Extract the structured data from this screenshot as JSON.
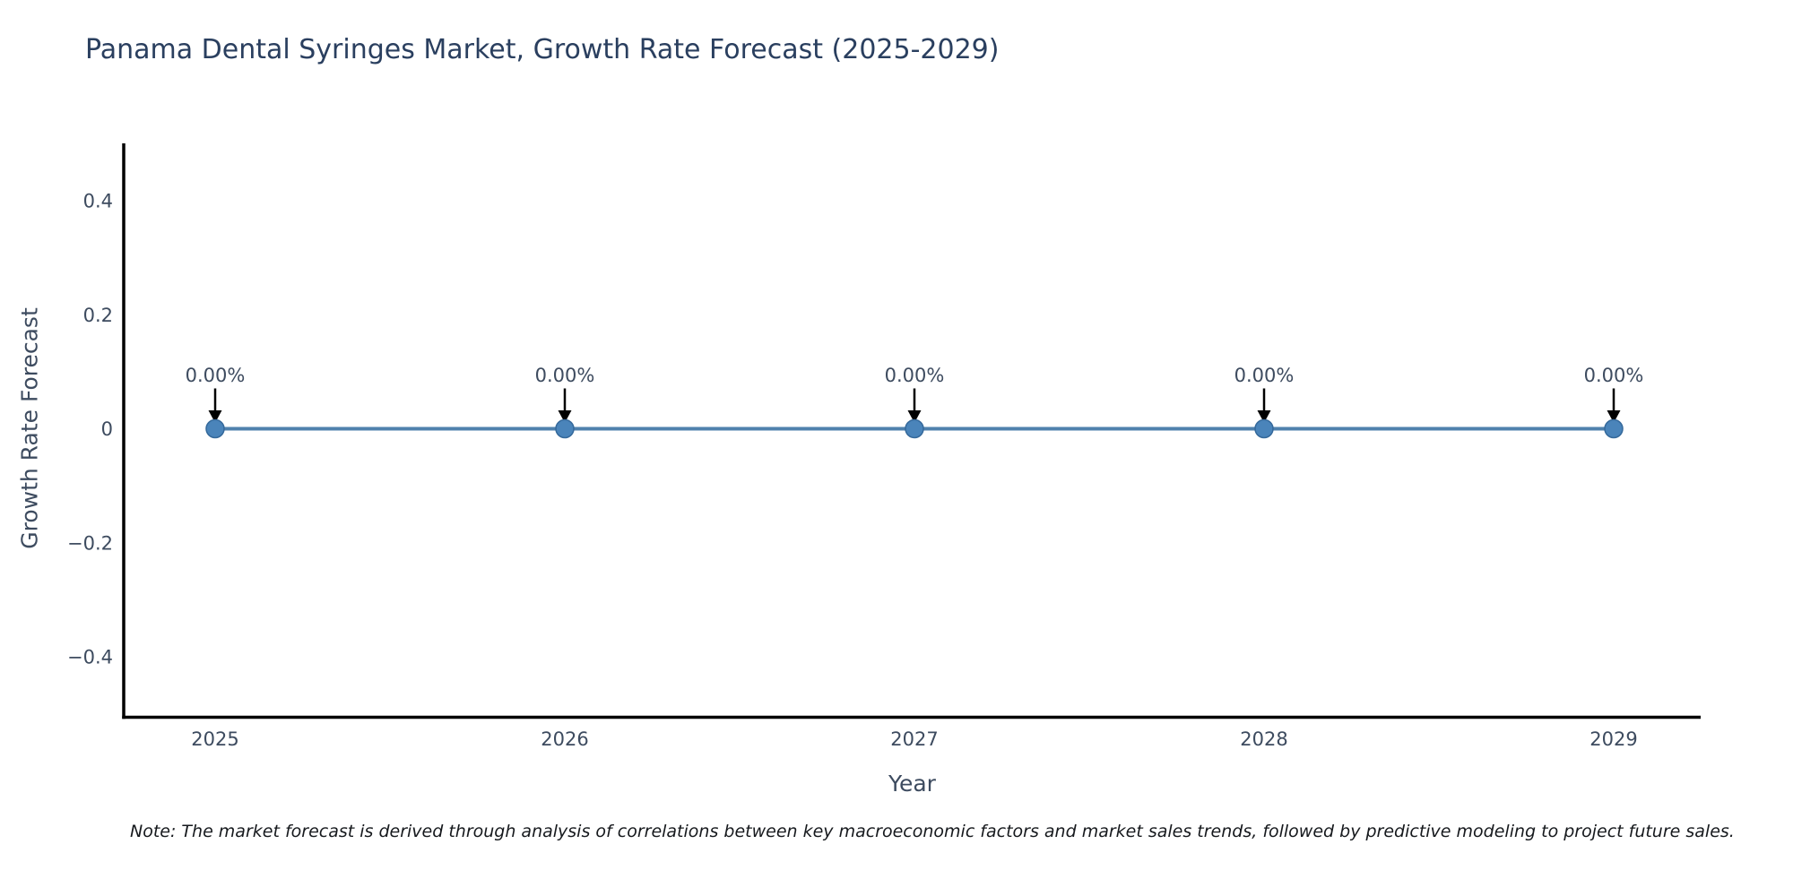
{
  "figure": {
    "title": "Panama Dental Syringes Market, Growth Rate Forecast (2025-2029)",
    "note": "Note: The market forecast is derived through analysis of correlations between key macroeconomic factors and market sales trends, followed by predictive modeling to project future sales."
  },
  "colors": {
    "title_text": "#2a3f5f",
    "axis_text": "#3d4b5f",
    "spine": "#000000",
    "trend_line": "#4f81ad",
    "marker_fill": "#4a84ba",
    "marker_stroke": "#35699b",
    "arrow": "#000000",
    "note_text": "#16191d",
    "background": "#ffffff"
  },
  "chart_data": {
    "type": "line",
    "title": "Panama Dental Syringes Market, Growth Rate Forecast (2025-2029)",
    "x": [
      2025,
      2026,
      2027,
      2028,
      2029
    ],
    "xtick_labels": [
      "2025",
      "2026",
      "2027",
      "2028",
      "2029"
    ],
    "series": [
      {
        "name": "Growth Rate Forecast",
        "values": [
          0,
          0,
          0,
          0,
          0
        ]
      }
    ],
    "point_labels": [
      "0.00%",
      "0.00%",
      "0.00%",
      "0.00%",
      "0.00%"
    ],
    "annotation_style": "down-arrow",
    "xlabel": "Year",
    "ylabel": "Growth Rate Forecast",
    "ylim": [
      -0.5,
      0.5
    ],
    "yticks": [
      0.4,
      0.2,
      0,
      -0.2,
      -0.4
    ],
    "ytick_labels": [
      "0.4",
      "0.2",
      "0",
      "−0.2",
      "−0.4"
    ],
    "grid": false,
    "legend": "none"
  }
}
